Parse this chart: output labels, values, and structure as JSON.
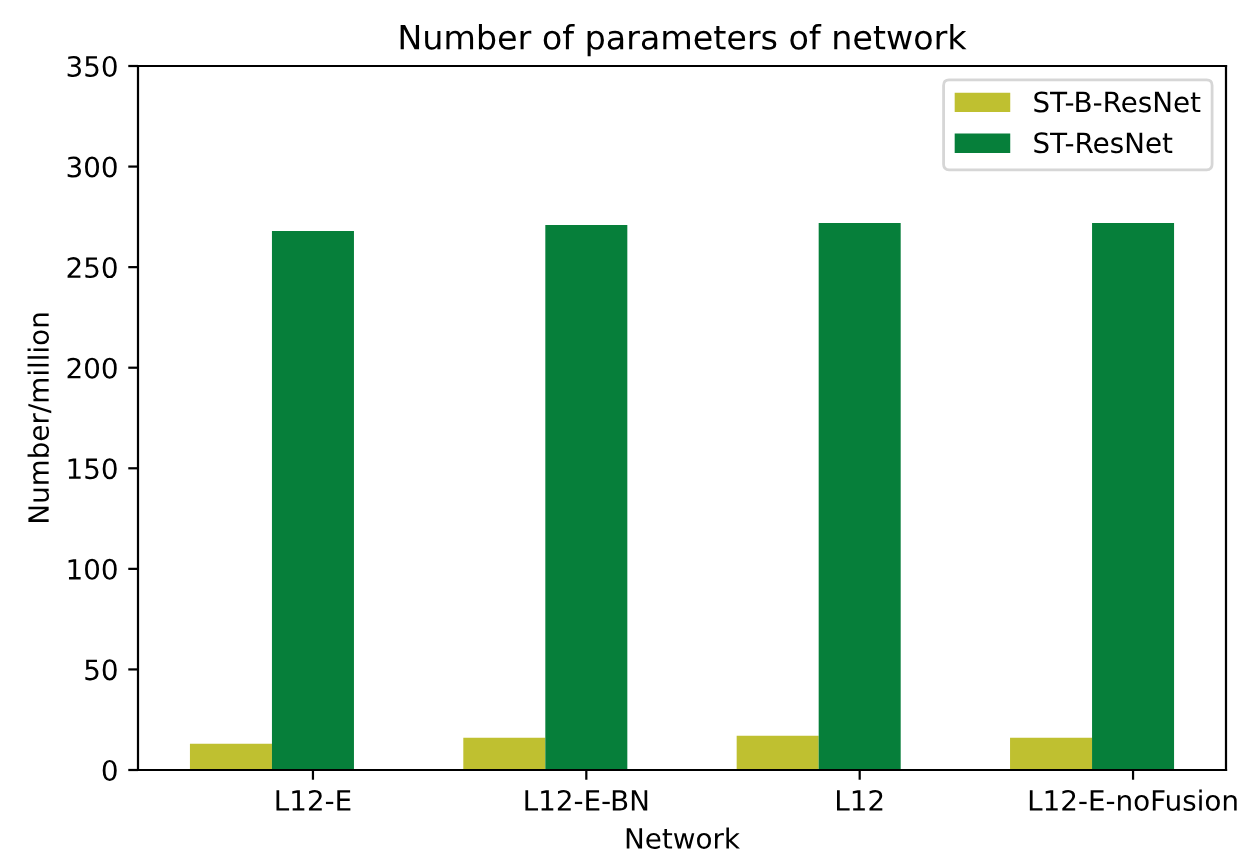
{
  "chart_data": {
    "type": "bar",
    "title": "Number of parameters of network",
    "xlabel": "Network",
    "ylabel": "Number/million",
    "categories": [
      "L12-E",
      "L12-E-BN",
      "L12",
      "L12-E-noFusion"
    ],
    "series": [
      {
        "name": "ST-B-ResNet",
        "color": "#bfc030",
        "values": [
          13,
          16,
          17,
          16
        ]
      },
      {
        "name": "ST-ResNet",
        "color": "#067f3a",
        "values": [
          268,
          271,
          272,
          272
        ]
      }
    ],
    "ylim": [
      0,
      350
    ],
    "yticks": [
      0,
      50,
      100,
      150,
      200,
      250,
      300,
      350
    ],
    "legend": "top right",
    "grid": false
  }
}
